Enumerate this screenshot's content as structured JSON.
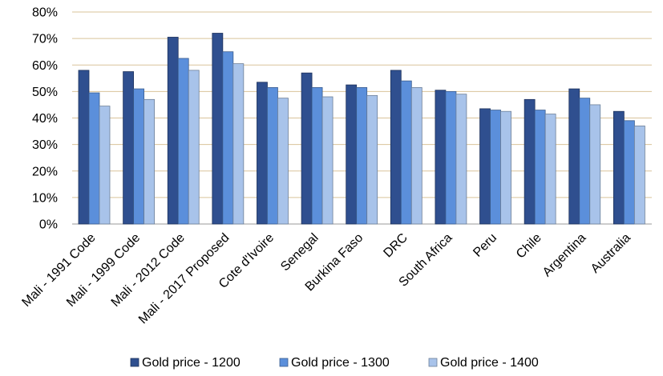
{
  "chart_data": {
    "type": "bar",
    "title": "",
    "xlabel": "",
    "ylabel": "",
    "ylim": [
      0,
      80
    ],
    "y_ticks": [
      "0%",
      "10%",
      "20%",
      "30%",
      "40%",
      "50%",
      "60%",
      "70%",
      "80%"
    ],
    "grid": "horizontal",
    "legend_position": "bottom",
    "categories": [
      "Mali - 1991 Code",
      "Mali - 1999 Code",
      "Mali - 2012 Code",
      "Mali - 2017 Proposed",
      "Cote d'Ivoire",
      "Senegal",
      "Burkina Faso",
      "DRC",
      "South Africa",
      "Peru",
      "Chile",
      "Argentina",
      "Australia"
    ],
    "series": [
      {
        "name": "Gold price - 1200",
        "color": "#2f4f8f",
        "values": [
          58,
          57.5,
          70.5,
          72,
          53.5,
          57,
          52.5,
          58,
          50.5,
          43.5,
          47,
          51,
          42.5
        ]
      },
      {
        "name": "Gold price - 1300",
        "color": "#5b8fdb",
        "values": [
          49.5,
          51,
          62.5,
          65,
          51.5,
          51.5,
          51.5,
          54,
          50,
          43,
          43,
          47.5,
          39
        ]
      },
      {
        "name": "Gold price - 1400",
        "color": "#a8c3ea",
        "values": [
          44.5,
          47,
          58,
          60.5,
          47.5,
          48,
          48.5,
          51.5,
          49,
          42.5,
          41.5,
          45,
          37
        ]
      }
    ]
  }
}
